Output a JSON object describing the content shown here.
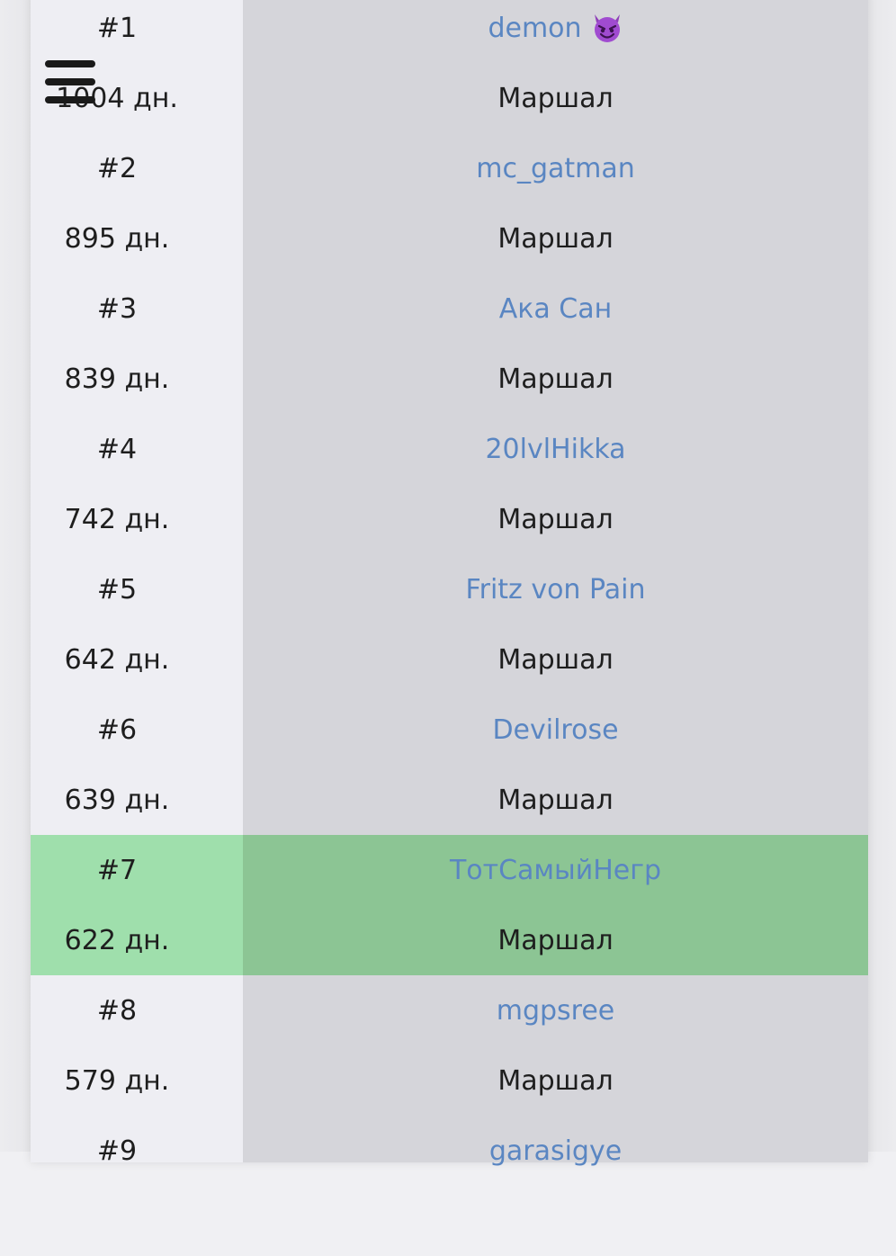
{
  "leaderboard": {
    "entries": [
      {
        "rank": "#1",
        "name": "demon",
        "emoji": "smiling-devil-icon",
        "days": "1004 дн.",
        "title": "Маршал",
        "highlight": false
      },
      {
        "rank": "#2",
        "name": "mc_gatman",
        "days": "895 дн.",
        "title": "Маршал",
        "highlight": false
      },
      {
        "rank": "#3",
        "name": "Ака Сан",
        "days": "839 дн.",
        "title": "Маршал",
        "highlight": false
      },
      {
        "rank": "#4",
        "name": "20lvlHikka",
        "days": "742 дн.",
        "title": "Маршал",
        "highlight": false
      },
      {
        "rank": "#5",
        "name": "Fritz von Pain",
        "days": "642 дн.",
        "title": "Маршал",
        "highlight": false
      },
      {
        "rank": "#6",
        "name": "Devilrose",
        "days": "639 дн.",
        "title": "Маршал",
        "highlight": false
      },
      {
        "rank": "#7",
        "name": "ТотСамыйНегр",
        "days": "622 дн.",
        "title": "Маршал",
        "highlight": true
      },
      {
        "rank": "#8",
        "name": "mgpsree",
        "days": "579 дн.",
        "title": "Маршал",
        "highlight": false
      },
      {
        "rank": "#9",
        "name": "garasigye",
        "days": "",
        "title": "",
        "highlight": false
      }
    ]
  },
  "colors": {
    "link": "#5a86c2",
    "highlight_left": "#9fdfac",
    "highlight_right": "#8cc594",
    "left_column": "#eeeef3",
    "right_column": "#d5d5da"
  }
}
